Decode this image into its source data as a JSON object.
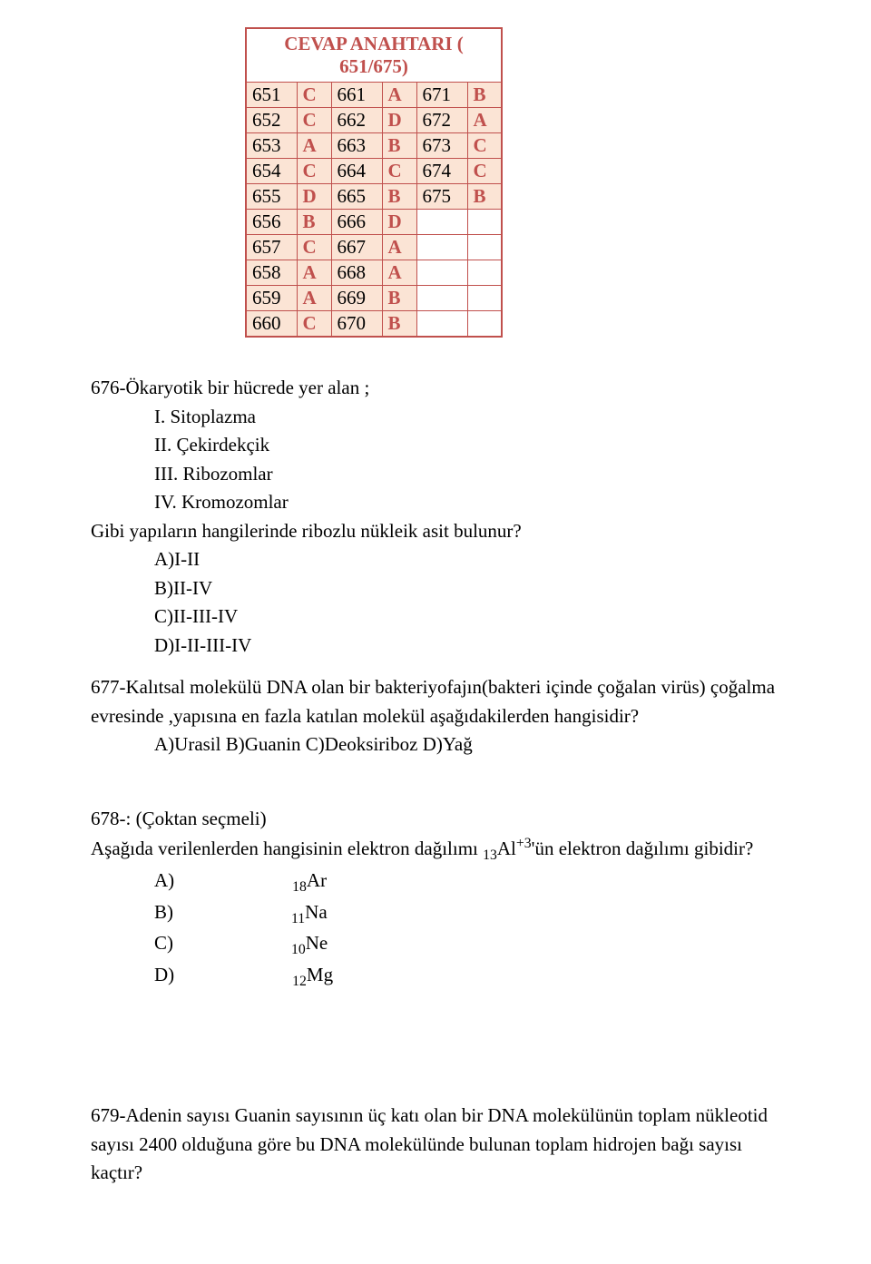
{
  "answer_key": {
    "title": "CEVAP ANAHTARI ( 651/675)",
    "title_color": "#c0504d",
    "border_color": "#c0504d",
    "fill_color": "#fbe4d5",
    "answer_color": "#c0504d",
    "qnum_color": "#000000",
    "rows": [
      {
        "c1q": "651",
        "c1a": "C",
        "c2q": "661",
        "c2a": "A",
        "c3q": "671",
        "c3a": "B"
      },
      {
        "c1q": "652",
        "c1a": "C",
        "c2q": "662",
        "c2a": "D",
        "c3q": "672",
        "c3a": "A"
      },
      {
        "c1q": "653",
        "c1a": "A",
        "c2q": "663",
        "c2a": "B",
        "c3q": "673",
        "c3a": "C"
      },
      {
        "c1q": "654",
        "c1a": "C",
        "c2q": "664",
        "c2a": "C",
        "c3q": "674",
        "c3a": "C"
      },
      {
        "c1q": "655",
        "c1a": "D",
        "c2q": "665",
        "c2a": "B",
        "c3q": "675",
        "c3a": "B"
      },
      {
        "c1q": "656",
        "c1a": "B",
        "c2q": "666",
        "c2a": "D",
        "c3q": "",
        "c3a": ""
      },
      {
        "c1q": "657",
        "c1a": "C",
        "c2q": "667",
        "c2a": "A",
        "c3q": "",
        "c3a": ""
      },
      {
        "c1q": "658",
        "c1a": "A",
        "c2q": "668",
        "c2a": "A",
        "c3q": "",
        "c3a": ""
      },
      {
        "c1q": "659",
        "c1a": "A",
        "c2q": "669",
        "c2a": "B",
        "c3q": "",
        "c3a": ""
      },
      {
        "c1q": "660",
        "c1a": "C",
        "c2q": "670",
        "c2a": "B",
        "c3q": "",
        "c3a": ""
      }
    ]
  },
  "q676": {
    "stem": "676-Ökaryotik bir hücrede yer alan ;",
    "roman": {
      "r1": "I. Sitoplazma",
      "r2": "II. Çekirdekçik",
      "r3": "III. Ribozomlar",
      "r4": "IV. Kromozomlar"
    },
    "ask": "Gibi yapıların hangilerinde ribozlu nükleik asit bulunur?",
    "opts": {
      "a": "A)I-II",
      "b": "B)II-IV",
      "c": "C)II-III-IV",
      "d": "D)I-II-III-IV"
    }
  },
  "q677": {
    "stem": "677-Kalıtsal molekülü DNA olan bir bakteriyofajın(bakteri içinde çoğalan virüs) çoğalma evresinde ,yapısına en fazla katılan molekül aşağıdakilerden hangisidir?",
    "opts_line": "A)Urasil  B)Guanin  C)Deoksiriboz  D)Yağ"
  },
  "q678": {
    "stem1": "678-: (Çoktan seçmeli)",
    "stem2_prefix": "Aşağıda verilenlerden hangisinin elektron dağılımı ",
    "stem2_sub": "13",
    "stem2_elem": "Al",
    "stem2_sup": "+3",
    "stem2_suffix": "'ün elektron dağılımı gibidir?",
    "opts": {
      "a_pre": "A) ",
      "a_sub": "18",
      "a_el": "Ar",
      "b_pre": "B) ",
      "b_sub": "11",
      "b_el": "Na",
      "c_pre": "C) ",
      "c_sub": "10",
      "c_el": "Ne",
      "d_pre": "D) ",
      "d_sub": "12",
      "d_el": "Mg"
    }
  },
  "q679": {
    "stem": "679-Adenin sayısı Guanin sayısının üç katı olan bir DNA molekülünün toplam nükleotid sayısı 2400 olduğuna göre bu DNA molekülünde bulunan toplam hidrojen bağı sayısı kaçtır?"
  }
}
